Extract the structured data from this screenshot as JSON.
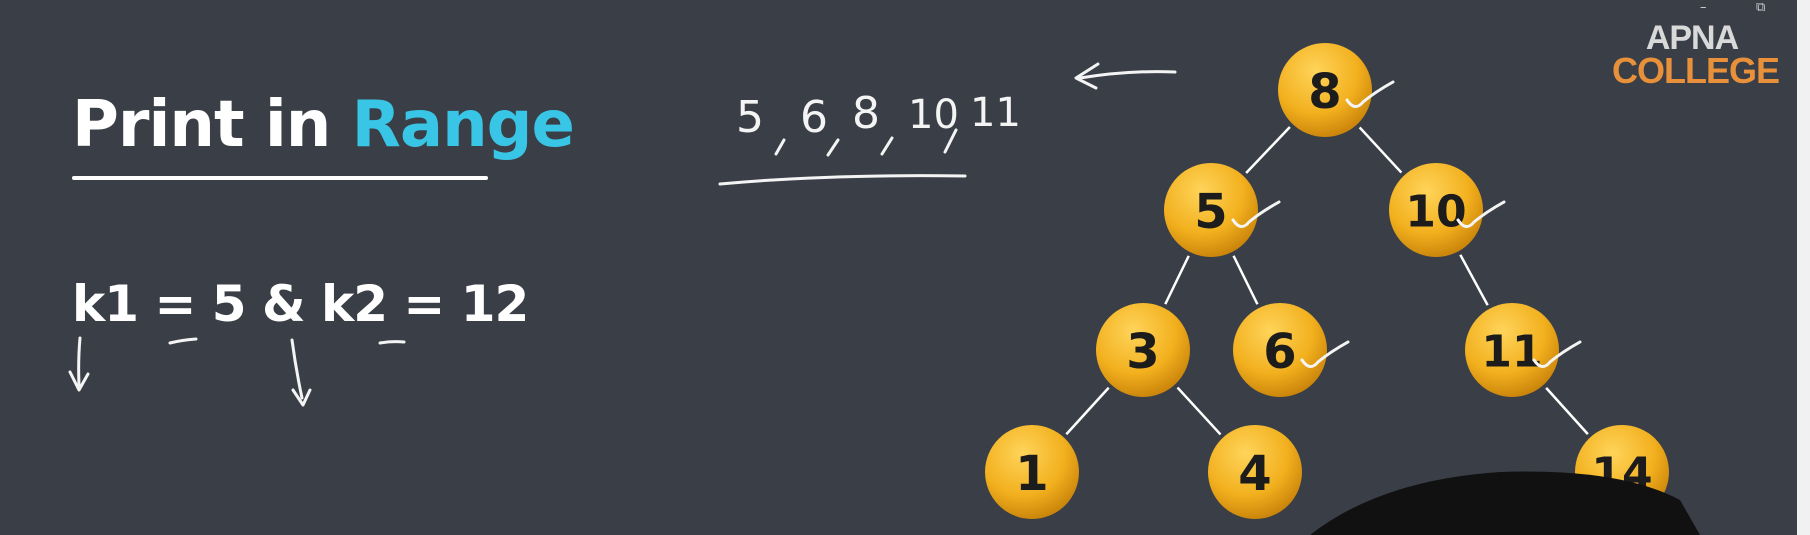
{
  "slide": {
    "title_part1": "Print in ",
    "title_part2": "Range",
    "formula": "k1 = 5 & k2 = 12"
  },
  "logo": {
    "line1": "APNA",
    "line2": "COLLEGE"
  },
  "window_controls": {
    "minimize": "–",
    "restore": "⧉"
  },
  "handwritten": {
    "sequence": [
      "5",
      "6",
      "8",
      "10",
      "11"
    ]
  },
  "tree": {
    "nodes": [
      {
        "id": "n8",
        "label": "8"
      },
      {
        "id": "n5",
        "label": "5"
      },
      {
        "id": "n10",
        "label": "10"
      },
      {
        "id": "n3",
        "label": "3"
      },
      {
        "id": "n6",
        "label": "6"
      },
      {
        "id": "n11",
        "label": "11"
      },
      {
        "id": "n1",
        "label": "1"
      },
      {
        "id": "n4",
        "label": "4"
      },
      {
        "id": "n14",
        "label": "14"
      }
    ],
    "edges": [
      [
        "n8",
        "n5"
      ],
      [
        "n8",
        "n10"
      ],
      [
        "n5",
        "n3"
      ],
      [
        "n5",
        "n6"
      ],
      [
        "n10",
        "n11"
      ],
      [
        "n3",
        "n1"
      ],
      [
        "n3",
        "n4"
      ],
      [
        "n11",
        "n14"
      ]
    ],
    "checked": [
      "n8",
      "n5",
      "n10",
      "n6",
      "n11"
    ]
  },
  "colors": {
    "background": "#3a3f47",
    "accent": "#39c6e6",
    "node_fill": "#f2b01e",
    "logo_orange": "#e8913a"
  }
}
